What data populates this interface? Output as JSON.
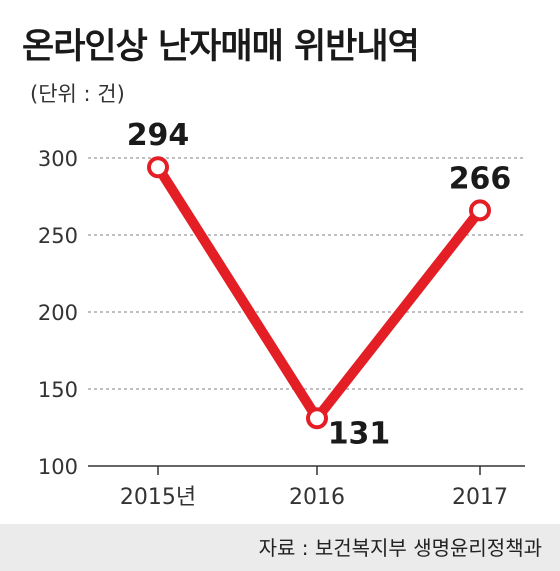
{
  "title": "온라인상 난자매매 위반내역",
  "unit": "(단위 : 건)",
  "source": "자료 : 보건복지부 생명윤리정책과",
  "colors": {
    "line": "#e31e24",
    "grid": "#9a9a9a",
    "axis": "#333333",
    "text": "#1a1a1a",
    "footer": "#ebebeb"
  },
  "chart_data": {
    "type": "line",
    "title": "온라인상 난자매매 위반내역",
    "xlabel": "",
    "ylabel": "(단위 : 건)",
    "categories": [
      "2015년",
      "2016",
      "2017"
    ],
    "values": [
      294,
      131,
      266
    ],
    "data_labels": [
      "294",
      "131",
      "266"
    ],
    "ylim": [
      100,
      300
    ],
    "yticks": [
      100,
      150,
      200,
      250,
      300
    ],
    "ytick_labels": [
      "100",
      "150",
      "200",
      "250",
      "300"
    ],
    "grid": true,
    "legend": "none"
  }
}
